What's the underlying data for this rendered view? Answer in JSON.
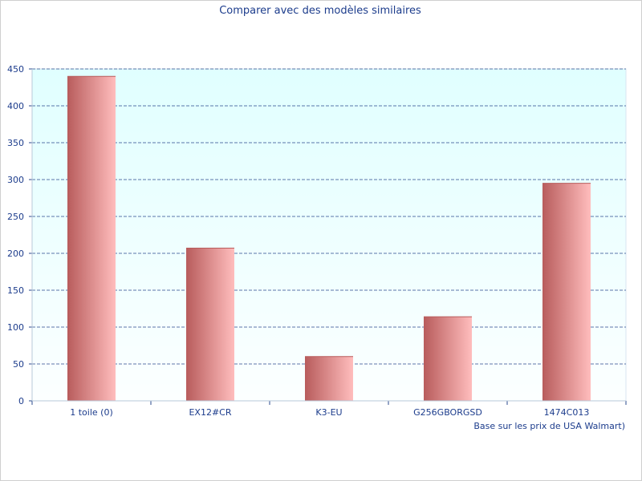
{
  "chart_data": {
    "type": "bar",
    "title": "Comparer avec des modèles similaires",
    "footnote": "Base sur les prix de USA Walmart)",
    "categories": [
      "1 toile (0)",
      "EX12#CR",
      "K3-EU",
      "G256GBORGSD",
      "1474C013"
    ],
    "values": [
      440,
      207,
      60,
      114,
      295
    ],
    "ylim": [
      0,
      450
    ],
    "yticks": [
      "0",
      "50",
      "100",
      "150",
      "200",
      "250",
      "300",
      "350",
      "400",
      "450"
    ],
    "grid": true,
    "legend": "none",
    "colors": {
      "bar_dark": "#b85c5c",
      "bar_light": "#ffbdbd",
      "plot_bg_top": "#e0ffff",
      "plot_bg_bottom": "#fcffff",
      "grid": "#2a4a8c",
      "text": "#1c3c8c"
    }
  }
}
